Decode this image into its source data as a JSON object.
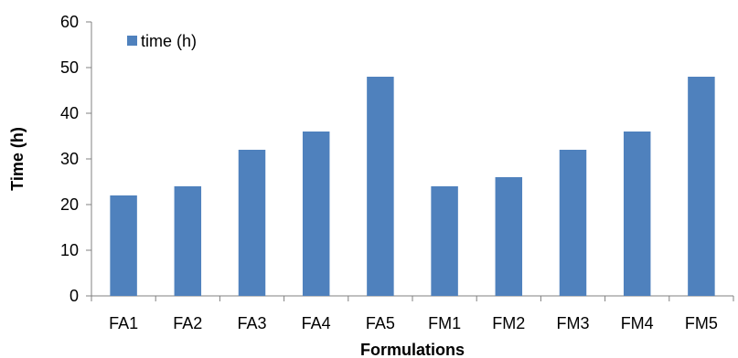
{
  "chart_data": {
    "type": "bar",
    "categories": [
      "FA1",
      "FA2",
      "FA3",
      "FA4",
      "FA5",
      "FM1",
      "FM2",
      "FM3",
      "FM4",
      "FM5"
    ],
    "series": [
      {
        "name": "time (h)",
        "values": [
          22,
          24,
          32,
          36,
          48,
          24,
          26,
          32,
          36,
          48
        ],
        "color": "#4F81BD"
      }
    ],
    "title": "",
    "xlabel": "Formulations",
    "ylabel": "Time (h)",
    "ylim": [
      0,
      60
    ],
    "yticks": [
      0,
      10,
      20,
      30,
      40,
      50,
      60
    ],
    "grid": false,
    "legend_position": "top-left"
  }
}
